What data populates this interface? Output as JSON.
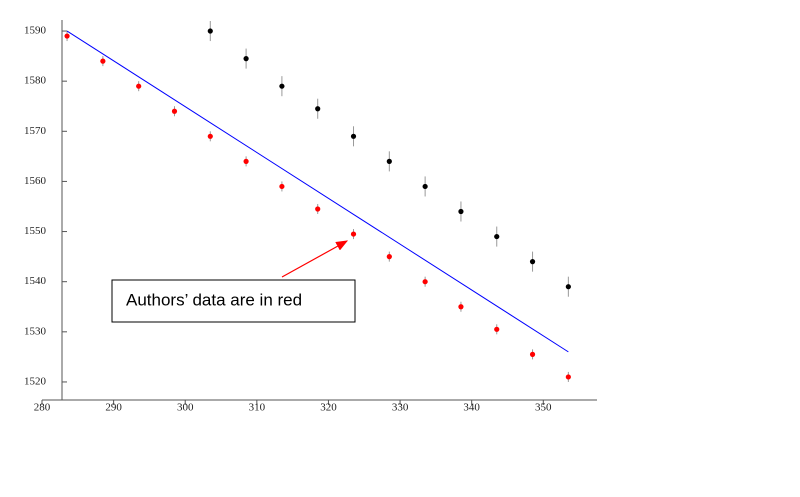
{
  "chart_data": {
    "type": "scatter",
    "annotation": "Authors’ data are in red",
    "xlim": [
      280,
      357.5
    ],
    "ylim": [
      1516.4,
      1592.2
    ],
    "xticks": [
      280,
      290,
      300,
      310,
      320,
      330,
      340,
      350
    ],
    "yticks": [
      1520,
      1530,
      1540,
      1550,
      1560,
      1570,
      1580,
      1590
    ],
    "series": [
      {
        "mode": "points",
        "color": "#ff0000",
        "x": [
          283.5,
          288.5,
          293.5,
          298.5,
          303.5,
          308.5,
          313.5,
          318.5,
          323.5,
          328.5,
          333.5,
          338.5,
          343.5,
          348.5,
          353.5
        ],
        "values": [
          1589,
          1584,
          1579,
          1574,
          1569,
          1564,
          1559,
          1554.5,
          1549.5,
          1545,
          1540,
          1535,
          1530.5,
          1525.5,
          1521
        ],
        "errors": [
          1,
          1,
          1,
          1,
          1,
          1,
          1,
          1,
          1,
          1,
          1,
          1,
          1,
          1,
          1
        ]
      },
      {
        "mode": "points",
        "color": "#000000",
        "x": [
          303.5,
          308.5,
          313.5,
          318.5,
          323.5,
          328.5,
          333.5,
          338.5,
          343.5,
          348.5,
          353.5
        ],
        "values": [
          1590,
          1584.5,
          1579,
          1574.5,
          1569,
          1564,
          1559,
          1554,
          1549,
          1544,
          1539
        ],
        "errors": [
          2,
          2,
          2,
          2,
          2,
          2,
          2,
          2,
          2,
          2,
          2
        ]
      },
      {
        "mode": "line",
        "color": "#0000ff",
        "x": [
          283.5,
          353.5
        ],
        "values": [
          1590,
          1526
        ]
      }
    ]
  }
}
